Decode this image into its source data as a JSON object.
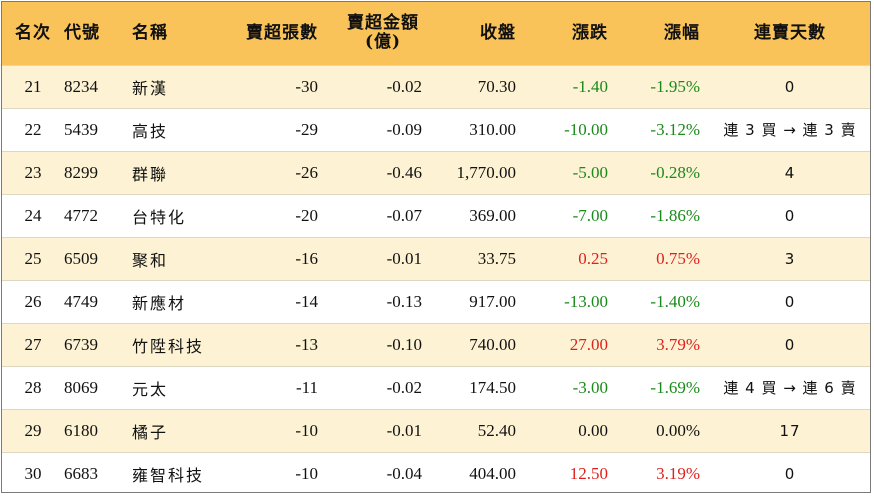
{
  "header": {
    "rank": "名次",
    "code": "代號",
    "name": "名稱",
    "net_sell_lots": "賣超張數",
    "net_sell_amount_line1": "賣超金額",
    "net_sell_amount_line2": "(億)",
    "close": "收盤",
    "change": "漲跌",
    "change_pct": "漲幅",
    "streak": "連賣天數"
  },
  "colors": {
    "header_bg": "#f9c35a",
    "stripe": "#fdf3d4",
    "up": "#e0201c",
    "down": "#1a8a1a"
  },
  "rows": [
    {
      "rank": "21",
      "code": "8234",
      "name": "新漢",
      "lots": "-30",
      "amount": "-0.02",
      "close": "70.30",
      "change": "-1.40",
      "pct": "-1.95%",
      "dir": "down",
      "streak": "0"
    },
    {
      "rank": "22",
      "code": "5439",
      "name": "高技",
      "lots": "-29",
      "amount": "-0.09",
      "close": "310.00",
      "change": "-10.00",
      "pct": "-3.12%",
      "dir": "down",
      "streak": "連 3 買 → 連 3 賣"
    },
    {
      "rank": "23",
      "code": "8299",
      "name": "群聯",
      "lots": "-26",
      "amount": "-0.46",
      "close": "1,770.00",
      "change": "-5.00",
      "pct": "-0.28%",
      "dir": "down",
      "streak": "4"
    },
    {
      "rank": "24",
      "code": "4772",
      "name": "台特化",
      "lots": "-20",
      "amount": "-0.07",
      "close": "369.00",
      "change": "-7.00",
      "pct": "-1.86%",
      "dir": "down",
      "streak": "0"
    },
    {
      "rank": "25",
      "code": "6509",
      "name": "聚和",
      "lots": "-16",
      "amount": "-0.01",
      "close": "33.75",
      "change": "0.25",
      "pct": "0.75%",
      "dir": "up",
      "streak": "3"
    },
    {
      "rank": "26",
      "code": "4749",
      "name": "新應材",
      "lots": "-14",
      "amount": "-0.13",
      "close": "917.00",
      "change": "-13.00",
      "pct": "-1.40%",
      "dir": "down",
      "streak": "0"
    },
    {
      "rank": "27",
      "code": "6739",
      "name": "竹陞科技",
      "lots": "-13",
      "amount": "-0.10",
      "close": "740.00",
      "change": "27.00",
      "pct": "3.79%",
      "dir": "up",
      "streak": "0"
    },
    {
      "rank": "28",
      "code": "8069",
      "name": "元太",
      "lots": "-11",
      "amount": "-0.02",
      "close": "174.50",
      "change": "-3.00",
      "pct": "-1.69%",
      "dir": "down",
      "streak": "連 4 買 → 連 6 賣"
    },
    {
      "rank": "29",
      "code": "6180",
      "name": "橘子",
      "lots": "-10",
      "amount": "-0.01",
      "close": "52.40",
      "change": "0.00",
      "pct": "0.00%",
      "dir": "flat",
      "streak": "17"
    },
    {
      "rank": "30",
      "code": "6683",
      "name": "雍智科技",
      "lots": "-10",
      "amount": "-0.04",
      "close": "404.00",
      "change": "12.50",
      "pct": "3.19%",
      "dir": "up",
      "streak": "0"
    }
  ]
}
